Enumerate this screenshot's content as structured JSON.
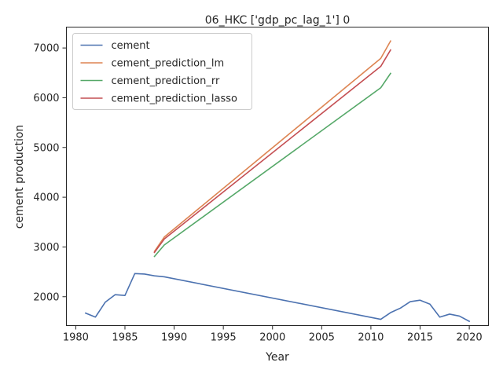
{
  "chart_data": {
    "type": "line",
    "title": "06_HKC ['gdp_pc_lag_1'] 0",
    "xlabel": "Year",
    "ylabel": "cement production",
    "xlim": [
      1979.05,
      2021.95
    ],
    "ylim": [
      1420,
      7420
    ],
    "xticks": [
      1980,
      1985,
      1990,
      1995,
      2000,
      2005,
      2010,
      2015,
      2020
    ],
    "yticks": [
      2000,
      3000,
      4000,
      5000,
      6000,
      7000
    ],
    "grid": false,
    "legend_position": "upper left",
    "series": [
      {
        "name": "cement",
        "color": "#4c72b0",
        "x": [
          1981,
          1982,
          1983,
          1984,
          1985,
          1986,
          1987,
          1988,
          1989,
          2011,
          2012,
          2013,
          2014,
          2015,
          2016,
          2017,
          2018,
          2019,
          2020
        ],
        "y": [
          1670,
          1590,
          1890,
          2040,
          2025,
          2465,
          2455,
          2420,
          2400,
          1545,
          1680,
          1770,
          1900,
          1930,
          1850,
          1590,
          1650,
          1610,
          1505
        ]
      },
      {
        "name": "cement_prediction_lm",
        "color": "#dd8452",
        "x": [
          1988,
          1989,
          2011,
          2012
        ],
        "y": [
          2910,
          3200,
          6790,
          7140
        ]
      },
      {
        "name": "cement_prediction_rr",
        "color": "#55a868",
        "x": [
          1988,
          1989,
          2011,
          2012
        ],
        "y": [
          2810,
          3040,
          6200,
          6490
        ]
      },
      {
        "name": "cement_prediction_lasso",
        "color": "#c44e52",
        "x": [
          1988,
          1989,
          2011,
          2012
        ],
        "y": [
          2890,
          3160,
          6630,
          6960
        ]
      }
    ]
  }
}
